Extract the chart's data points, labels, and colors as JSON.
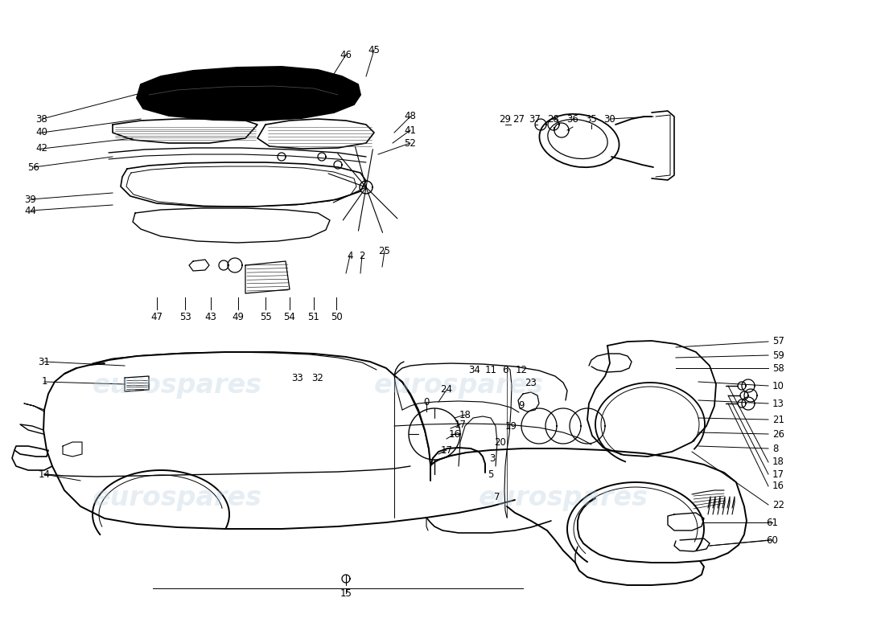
{
  "background_color": "#ffffff",
  "watermark_text": "eurospares",
  "watermark_color": "#b8cfe0",
  "watermark_alpha": 0.35,
  "line_color": "#000000",
  "label_fontsize": 8.5,
  "fig_width": 11.0,
  "fig_height": 8.0,
  "dpi": 100
}
